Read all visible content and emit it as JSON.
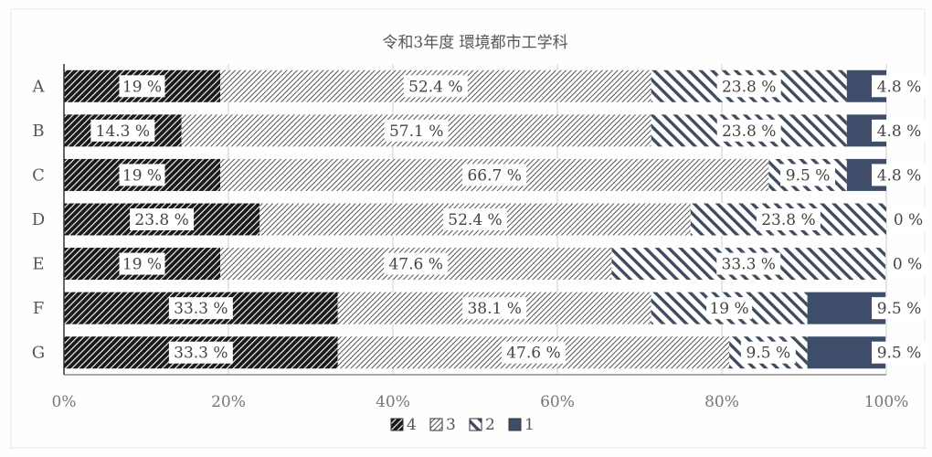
{
  "chart_data": {
    "type": "bar",
    "orientation": "horizontal",
    "stacked": true,
    "percent": true,
    "title": "令和3年度 環境都市工学科",
    "categories": [
      "A",
      "B",
      "C",
      "D",
      "E",
      "F",
      "G"
    ],
    "series": [
      {
        "name": "4",
        "pattern": "dense-diagonal-black",
        "values": [
          19,
          14.3,
          19,
          23.8,
          19,
          33.3,
          33.3
        ],
        "labels": [
          "19 %",
          "14.3 %",
          "19 %",
          "23.8 %",
          "19 %",
          "33.3 %",
          "33.3 %"
        ]
      },
      {
        "name": "3",
        "pattern": "fine-diagonal-hatch",
        "values": [
          52.4,
          57.1,
          66.7,
          52.4,
          47.6,
          38.1,
          47.6
        ],
        "labels": [
          "52.4 %",
          "57.1 %",
          "66.7 %",
          "52.4 %",
          "47.6 %",
          "38.1 %",
          "47.6 %"
        ]
      },
      {
        "name": "2",
        "pattern": "wide-backslash-stripes",
        "values": [
          23.8,
          23.8,
          9.5,
          23.8,
          33.3,
          19,
          9.5
        ],
        "labels": [
          "23.8 %",
          "23.8 %",
          "9.5 %",
          "23.8 %",
          "33.3 %",
          "19 %",
          "9.5 %"
        ]
      },
      {
        "name": "1",
        "pattern": "solid-navy",
        "values": [
          4.8,
          4.8,
          4.8,
          0,
          0,
          9.5,
          9.5
        ],
        "labels": [
          "4.8 %",
          "4.8 %",
          "4.8 %",
          "0 %",
          "0 %",
          "9.5 %",
          "9.5 %"
        ]
      }
    ],
    "xlim": [
      0,
      100
    ],
    "xticks": [
      "0%",
      "20%",
      "40%",
      "60%",
      "80%",
      "100%"
    ],
    "grid": "vertical",
    "legend": "bottom",
    "colors": {
      "series4": "#1a1a1a",
      "series3": "#555555",
      "series2": "#3f4b5e",
      "series1": "#3e4e6a",
      "grid": "#cfcfcf",
      "text": "#333333"
    }
  }
}
